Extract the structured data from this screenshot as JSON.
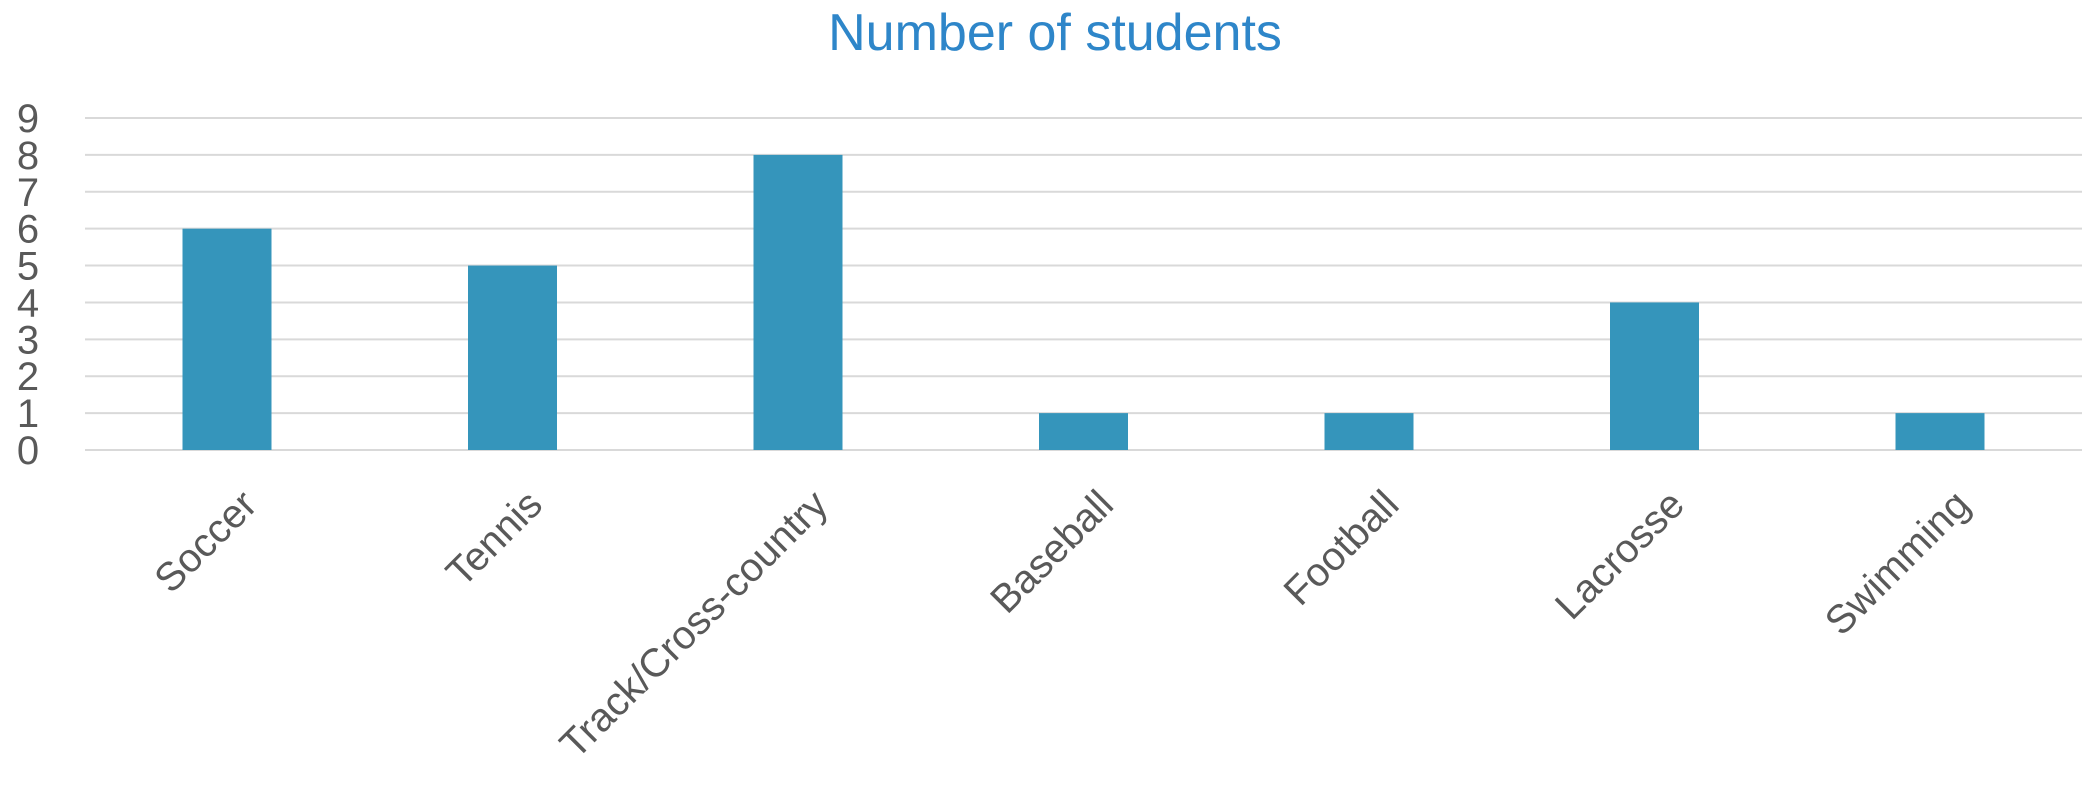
{
  "chart_data": {
    "type": "bar",
    "title": "Number of students",
    "categories": [
      "Soccer",
      "Tennis",
      "Track/Cross-country",
      "Baseball",
      "Football",
      "Lacrosse",
      "Swimming"
    ],
    "values": [
      6,
      5,
      8,
      1,
      1,
      4,
      1
    ],
    "xlabel": "",
    "ylabel": "",
    "ylim": [
      0,
      9
    ],
    "yticks": [
      "0",
      "1",
      "2",
      "3",
      "4",
      "5",
      "6",
      "7",
      "8",
      "9"
    ],
    "grid": true,
    "legend": "none",
    "colors": {
      "bar": "#3595BB",
      "title": "#2E86C9",
      "grid": "#D9D9D9",
      "text": "#595959"
    }
  }
}
